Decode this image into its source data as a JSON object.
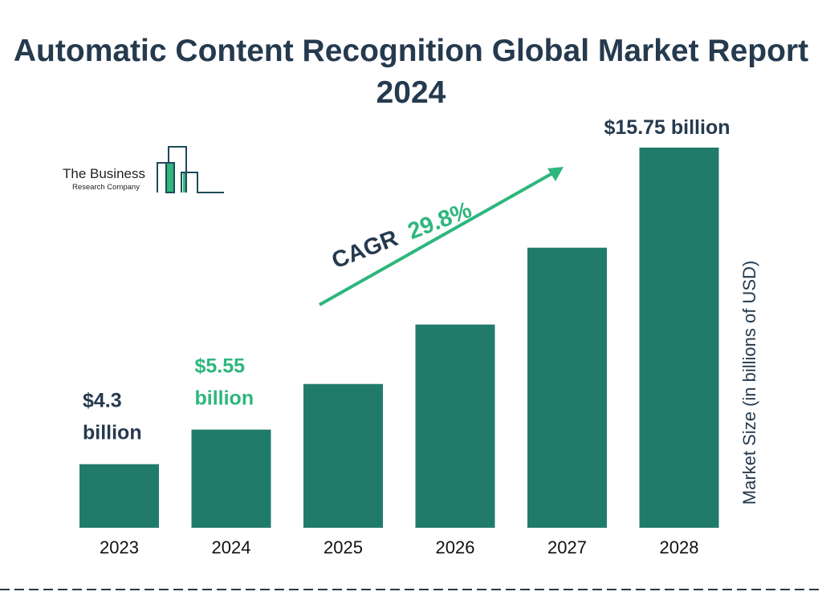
{
  "chart_data": {
    "type": "bar",
    "title": "Automatic Content Recognition Global Market Report 2024",
    "categories": [
      "2023",
      "2024",
      "2025",
      "2026",
      "2027",
      "2028"
    ],
    "values": [
      4.3,
      5.55,
      7.2,
      9.35,
      12.13,
      15.75
    ],
    "data_labels": {
      "2023": "$4.3 billion",
      "2024": "$5.55 billion",
      "2028": "$15.75 billion"
    },
    "ylabel": "Market Size (in billions of USD)",
    "ylim": [
      2,
      16.5
    ],
    "grid": false,
    "annotation": {
      "prefix": "CAGR",
      "value": "29.8%"
    },
    "colors": {
      "bar": "#217b6b",
      "accent": "#2eb67d",
      "text": "#253a4e"
    }
  },
  "logo": {
    "line1": "The Business",
    "line2": "Research Company"
  }
}
